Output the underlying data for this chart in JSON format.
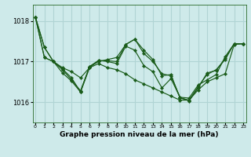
{
  "title": "Graphe pression niveau de la mer (hPa)",
  "bg_color": "#ceeaea",
  "grid_color": "#b0d4d4",
  "line_color": "#1a5c1a",
  "x_ticks": [
    0,
    1,
    2,
    3,
    4,
    5,
    6,
    7,
    8,
    9,
    10,
    11,
    12,
    13,
    14,
    15,
    16,
    17,
    18,
    19,
    20,
    21,
    22,
    23
  ],
  "y_ticks": [
    1016,
    1017,
    1018
  ],
  "ylim": [
    1015.5,
    1018.4
  ],
  "xlim": [
    -0.3,
    23.3
  ],
  "series": [
    [
      1018.1,
      1017.35,
      1017.0,
      1016.85,
      1016.75,
      1016.6,
      1016.85,
      1016.95,
      1016.85,
      1016.8,
      1016.7,
      1016.55,
      1016.45,
      1016.35,
      1016.25,
      1016.15,
      1016.05,
      1016.05,
      1016.3,
      1016.5,
      1016.6,
      1016.7,
      1017.42,
      1017.44
    ],
    [
      1018.1,
      1017.1,
      1017.0,
      1016.8,
      1016.55,
      1016.28,
      1016.88,
      1017.0,
      1017.05,
      1017.1,
      1017.42,
      1017.55,
      1017.2,
      1017.0,
      1016.7,
      1016.65,
      1016.12,
      1016.03,
      1016.35,
      1016.72,
      1016.78,
      1017.08,
      1017.44,
      1017.44
    ],
    [
      1018.1,
      1017.35,
      1017.0,
      1016.72,
      1016.52,
      1016.25,
      1016.88,
      1017.03,
      1017.0,
      1016.95,
      1017.38,
      1017.28,
      1016.9,
      1016.75,
      1016.35,
      1016.58,
      1016.12,
      1016.1,
      1016.42,
      1016.55,
      1016.68,
      1017.12,
      1017.44,
      1017.44
    ],
    [
      1018.1,
      1017.1,
      1017.0,
      1016.82,
      1016.6,
      1016.25,
      1016.85,
      1017.02,
      1017.02,
      1017.0,
      1017.42,
      1017.55,
      1017.28,
      1017.05,
      1016.65,
      1016.68,
      1016.1,
      1016.05,
      1016.38,
      1016.68,
      1016.8,
      1017.05,
      1017.44,
      1017.44
    ]
  ]
}
